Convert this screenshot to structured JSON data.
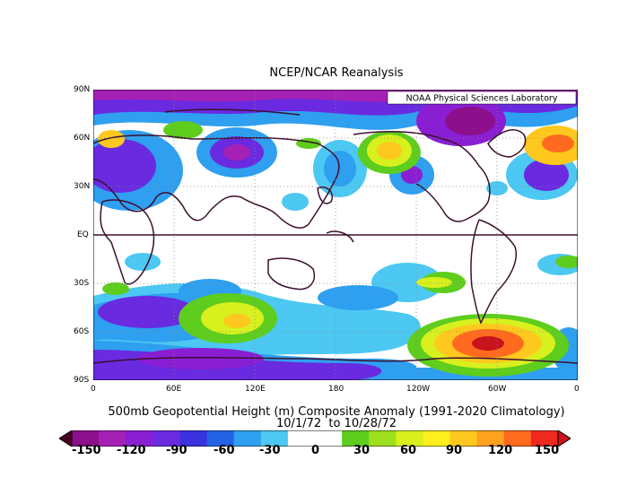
{
  "title": "NCEP/NCAR Reanalysis",
  "credit": "NOAA Physical Sciences Laboratory",
  "lat_labels": [
    "90N",
    "60N",
    "30N",
    "EQ",
    "30S",
    "60S",
    "90S"
  ],
  "lon_labels": [
    "0",
    "60E",
    "120E",
    "180",
    "120W",
    "60W",
    "0"
  ],
  "caption": {
    "line1": "500mb Geopotential Height (m) Composite Anomaly (1991-2020 Climatology)",
    "line2": "10/1/72  to 10/28/72"
  },
  "colorbar": {
    "labels": [
      "-150",
      "-120",
      "-90",
      "-60",
      "-30",
      "0",
      "30",
      "60",
      "90",
      "120",
      "150"
    ],
    "colors": [
      "#4a0026",
      "#8c0f8c",
      "#a521b5",
      "#8a1ed2",
      "#6a2ae0",
      "#3a32dc",
      "#2462e6",
      "#2f9ff0",
      "#4cc8f2",
      "#ffffff",
      "#ffffff",
      "#5ecd1e",
      "#9ee01e",
      "#d8f01e",
      "#ffee1e",
      "#ffc81e",
      "#ffa01e",
      "#ff6a1e",
      "#f0281e",
      "#c8141e"
    ]
  }
}
